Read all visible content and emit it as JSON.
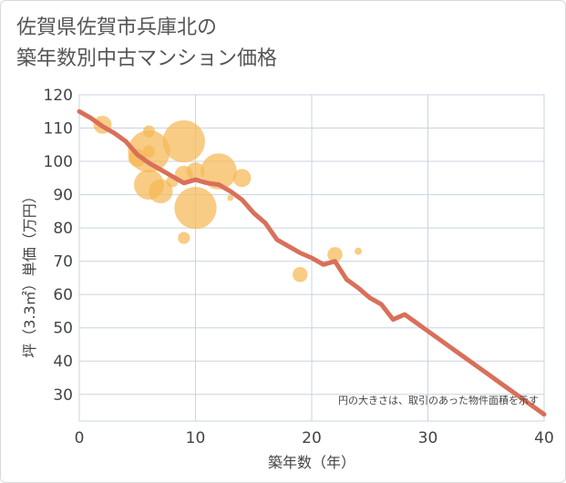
{
  "chart_data": {
    "type": "scatter",
    "title": "佐賀県佐賀市兵庫北の\n築年数別中古マンション価格",
    "xlabel": "築年数（年）",
    "ylabel": "坪（3.3㎡）単価（万円）",
    "xlim": [
      0,
      40
    ],
    "ylim": [
      22,
      120
    ],
    "xticks": [
      0,
      10,
      20,
      30,
      40
    ],
    "yticks": [
      30,
      40,
      50,
      60,
      70,
      80,
      90,
      100,
      110,
      120
    ],
    "grid": true,
    "annotation": "円の大きさは、取引のあった物件面積を示す",
    "colors": {
      "bubble": "#f5b955",
      "line": "#d9705a",
      "grid": "#c8d4e0"
    },
    "bubbles": [
      {
        "x": 2,
        "y": 111,
        "size": 3
      },
      {
        "x": 5,
        "y": 101,
        "size": 3
      },
      {
        "x": 6,
        "y": 109,
        "size": 2
      },
      {
        "x": 6,
        "y": 103,
        "size": 7
      },
      {
        "x": 6,
        "y": 93,
        "size": 5
      },
      {
        "x": 6,
        "y": 103,
        "size": 2
      },
      {
        "x": 7,
        "y": 91,
        "size": 4
      },
      {
        "x": 8,
        "y": 94,
        "size": 2
      },
      {
        "x": 9,
        "y": 106,
        "size": 7
      },
      {
        "x": 9,
        "y": 96,
        "size": 3
      },
      {
        "x": 9,
        "y": 77,
        "size": 2
      },
      {
        "x": 10,
        "y": 97,
        "size": 3
      },
      {
        "x": 10,
        "y": 86,
        "size": 7
      },
      {
        "x": 12,
        "y": 97,
        "size": 6
      },
      {
        "x": 13,
        "y": 89,
        "size": 1
      },
      {
        "x": 14,
        "y": 95,
        "size": 3
      },
      {
        "x": 19,
        "y": 66,
        "size": 2.5
      },
      {
        "x": 22,
        "y": 72,
        "size": 2.5
      },
      {
        "x": 24,
        "y": 73,
        "size": 1.2
      }
    ],
    "trend": {
      "x": [
        0,
        1,
        2,
        3,
        4,
        5,
        6,
        7,
        8,
        9,
        10,
        11,
        12,
        13,
        14,
        15,
        16,
        17,
        18,
        19,
        20,
        21,
        22,
        23,
        24,
        25,
        26,
        27,
        28,
        29,
        30,
        31,
        32,
        33,
        34,
        35,
        36,
        37,
        38,
        39,
        40
      ],
      "y": [
        115,
        113,
        110.5,
        108.5,
        106,
        102,
        99.5,
        97.5,
        95.5,
        93.5,
        94.5,
        93.5,
        93,
        91,
        88.5,
        84.5,
        81.5,
        76.5,
        74.5,
        72.5,
        71,
        69,
        70,
        64.5,
        62,
        59,
        57,
        52.5,
        54,
        51.5,
        49,
        46.5,
        44,
        41.5,
        39,
        36.5,
        34,
        31.5,
        29,
        26.5,
        24
      ]
    }
  }
}
